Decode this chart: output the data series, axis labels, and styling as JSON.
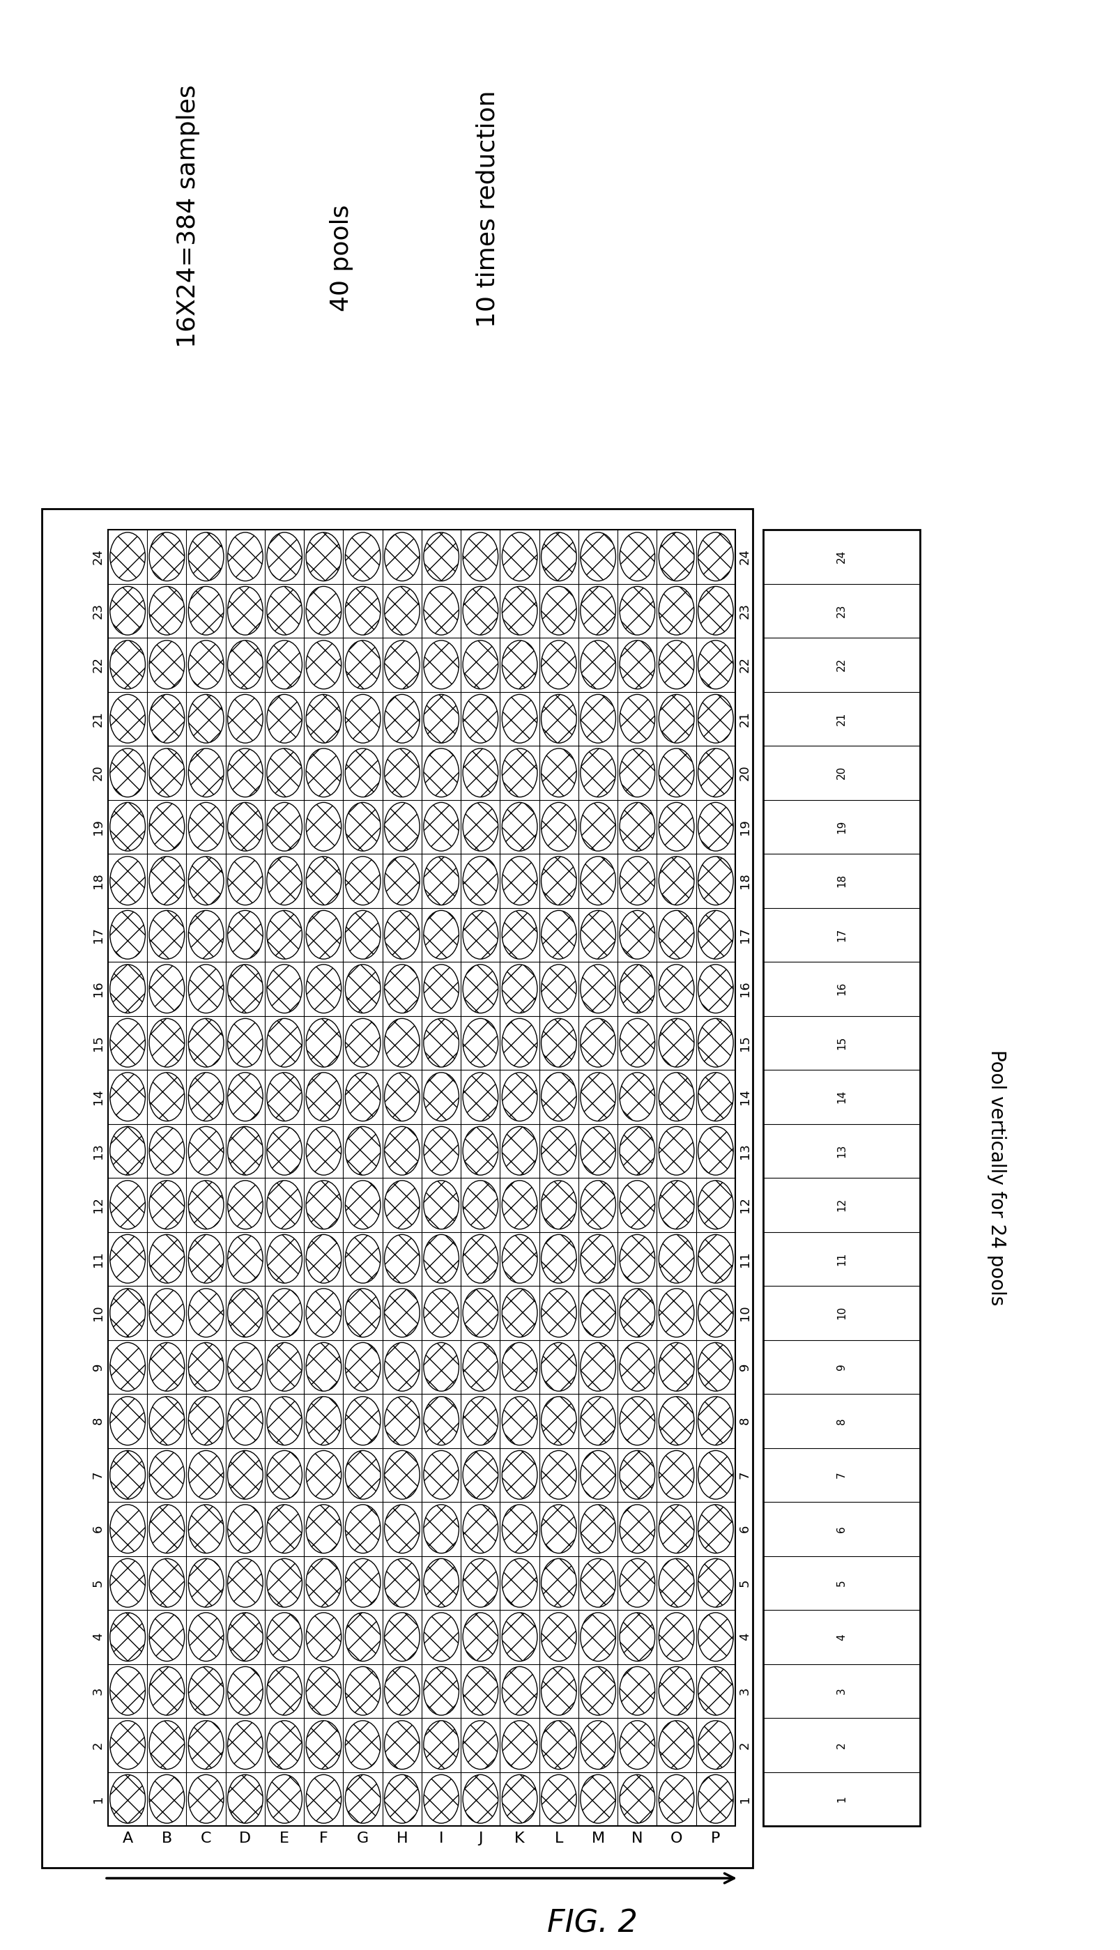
{
  "title": "FIG. 2",
  "rows": 24,
  "cols": 16,
  "row_labels_left": [
    "24",
    "23",
    "22",
    "21",
    "20",
    "19",
    "18",
    "17",
    "16",
    "15",
    "14",
    "13",
    "12",
    "11",
    "10",
    "9",
    "8",
    "7",
    "6",
    "5",
    "4",
    "3",
    "2",
    "1"
  ],
  "row_labels_right": [
    "24",
    "23",
    "22",
    "21",
    "20",
    "19",
    "18",
    "17",
    "16",
    "15",
    "14",
    "13",
    "12",
    "11",
    "10",
    "9",
    "8",
    "7",
    "6",
    "5",
    "4",
    "3",
    "2",
    "1"
  ],
  "col_labels_bottom": [
    "A",
    "B",
    "C",
    "D",
    "E",
    "F",
    "G",
    "H",
    "I",
    "J",
    "K",
    "L",
    "M",
    "N",
    "O",
    "P"
  ],
  "text1": "16X24=384 samples",
  "text2": "40 pools",
  "text3": "10 times reduction",
  "pool_text": "Pool vertically for 24 pools",
  "bg_color": "#ffffff",
  "circle_edge": "#000000",
  "hatch_pattern": "x",
  "small_plate_rows": 24,
  "small_plate_row_labels": [
    "24",
    "23",
    "22",
    "21",
    "20",
    "19",
    "18",
    "17",
    "16",
    "15",
    "14",
    "13",
    "12",
    "11",
    "10",
    "9",
    "8",
    "7",
    "6",
    "5",
    "4",
    "3",
    "2",
    "1"
  ]
}
